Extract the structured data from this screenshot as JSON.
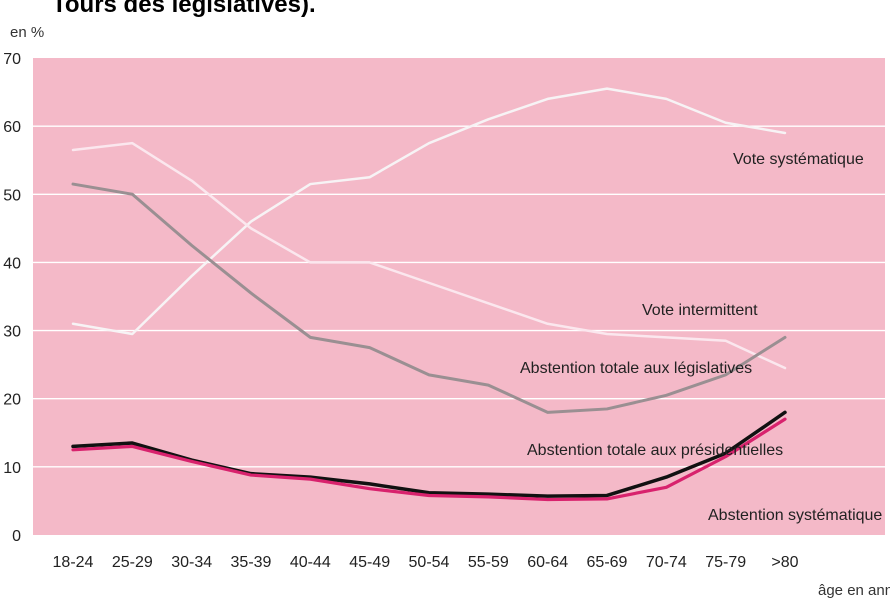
{
  "header_fragment": "Tours des législatives).",
  "chart_data": {
    "type": "line",
    "categories": [
      "18-24",
      "25-29",
      "30-34",
      "35-39",
      "40-44",
      "45-49",
      "50-54",
      "55-59",
      "60-64",
      "65-69",
      "70-74",
      "75-79",
      ">80"
    ],
    "xlabel": "âge en années",
    "ylabel": "en %",
    "ylim": [
      0,
      70
    ],
    "yticks": [
      0,
      10,
      20,
      30,
      40,
      50,
      60,
      70
    ],
    "grid": true,
    "legend": "none",
    "plot_background": "#f4b9c8",
    "series": [
      {
        "name": "Vote systématique",
        "color": "#f7f3f5",
        "values": [
          31,
          29.5,
          38,
          46,
          51.5,
          52.5,
          57.5,
          61,
          64,
          65.5,
          64,
          60.5,
          59
        ]
      },
      {
        "name": "Vote intermittent",
        "color": "#fbe7ee",
        "values": [
          56.5,
          57.5,
          52,
          45,
          40,
          40,
          37,
          34,
          31,
          29.5,
          29,
          28.5,
          24.5
        ]
      },
      {
        "name": "Abstention totale aux législatives",
        "color": "#9a8f92",
        "values": [
          51.5,
          50,
          42.5,
          35.5,
          29,
          27.5,
          23.5,
          22,
          18,
          18.5,
          20.5,
          23.5,
          29
        ]
      },
      {
        "name": "Abstention totale aux présidentielles",
        "color": "#111111",
        "values": [
          13,
          13.5,
          11,
          9,
          8.5,
          7.5,
          6.2,
          6,
          5.7,
          5.8,
          8.5,
          12,
          18
        ]
      },
      {
        "name": "Abstention systématique",
        "color": "#d8226d",
        "values": [
          12.5,
          13,
          10.8,
          8.8,
          8.2,
          6.8,
          5.8,
          5.6,
          5.2,
          5.3,
          7,
          11.5,
          17
        ]
      }
    ]
  }
}
